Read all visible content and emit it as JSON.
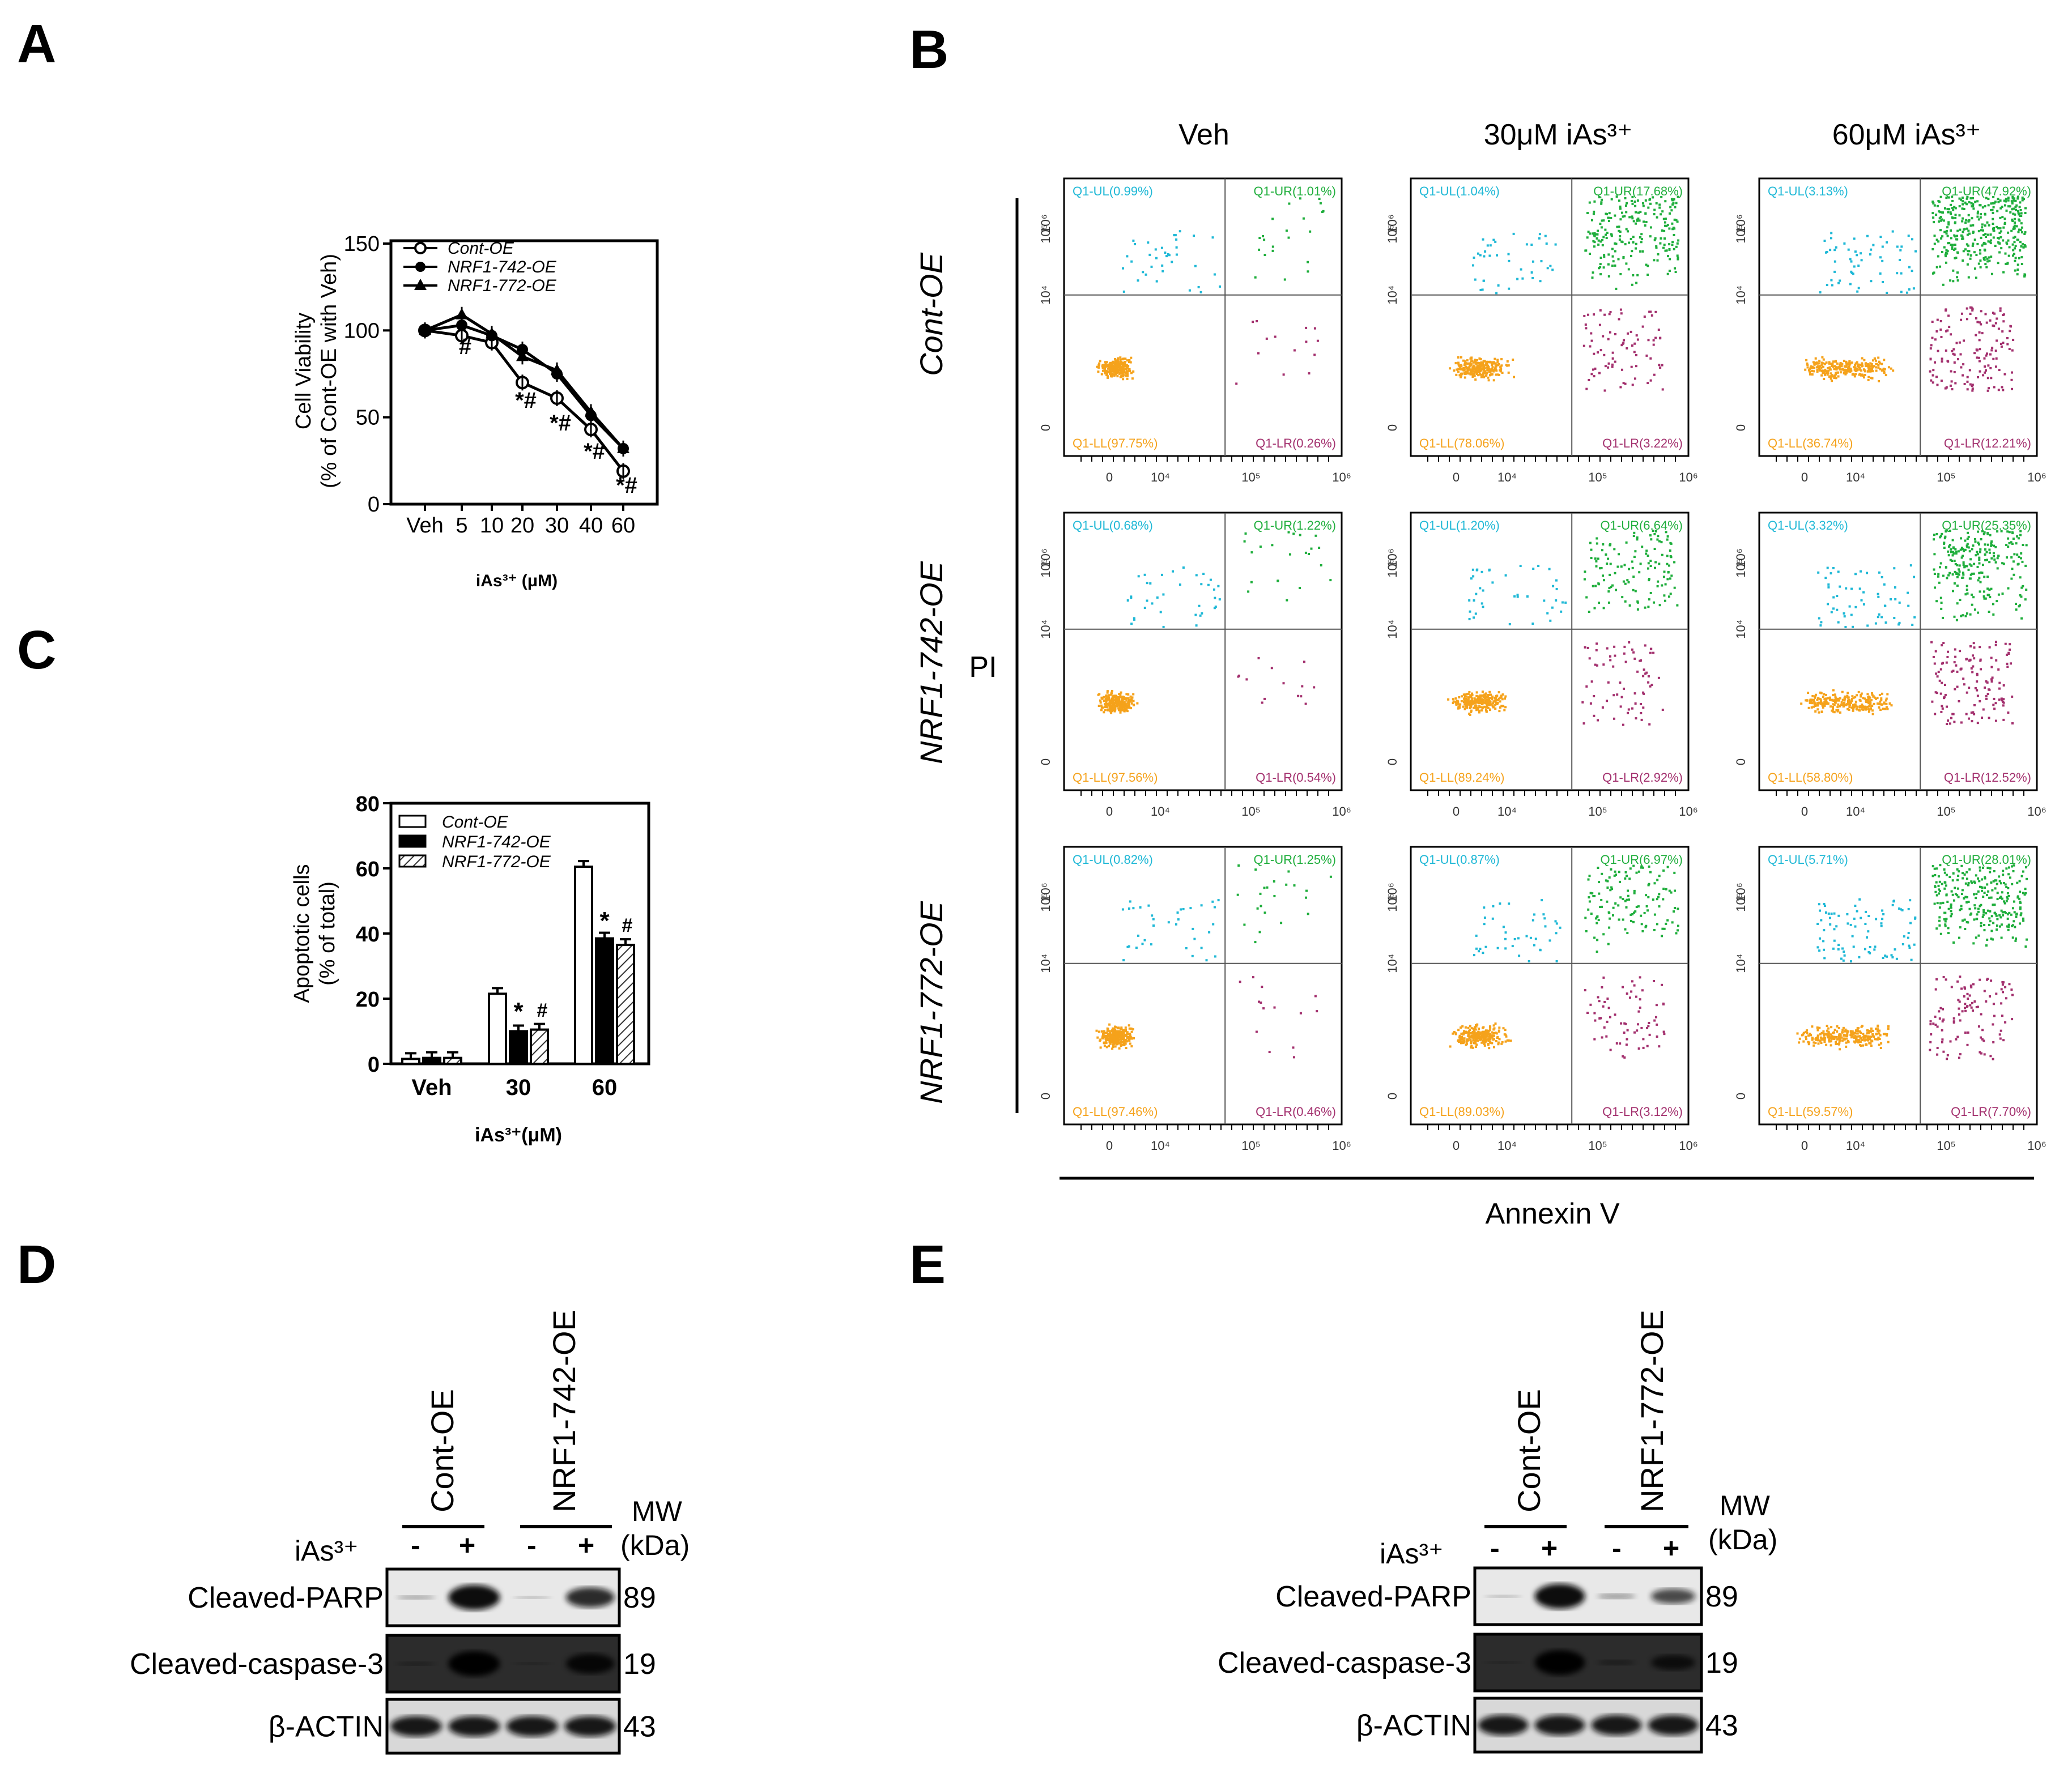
{
  "panels": {
    "A": "A",
    "B": "B",
    "C": "C",
    "D": "D",
    "E": "E"
  },
  "chart_data": [
    {
      "panel": "A",
      "type": "line",
      "title": "",
      "xlabel": "iAs³⁺ (μM)",
      "ylabel_line1": "Cell Viability",
      "ylabel_line2": "(% of Cont-OE with Veh)",
      "categories": [
        "Veh",
        "5",
        "10",
        "20",
        "30",
        "40",
        "60"
      ],
      "yticks": [
        "0",
        "50",
        "100",
        "150"
      ],
      "ylim": [
        0,
        150
      ],
      "series": [
        {
          "name": "Cont-OE",
          "values": [
            100,
            97,
            93,
            70,
            61,
            43,
            19
          ]
        },
        {
          "name": "NRF1-742-OE",
          "values": [
            100,
            103,
            97,
            89,
            75,
            51,
            32
          ]
        },
        {
          "name": "NRF1-772-OE",
          "values": [
            100,
            109,
            98,
            85,
            77,
            53,
            32
          ]
        }
      ],
      "annotations": [
        {
          "category": "5",
          "text": "#"
        },
        {
          "category": "20",
          "text": "*#"
        },
        {
          "category": "30",
          "text": "*#"
        },
        {
          "category": "40",
          "text": "*#"
        },
        {
          "category": "60",
          "text": "*#"
        }
      ],
      "legend_loc": "top-left"
    },
    {
      "panel": "C",
      "type": "bar",
      "title": "",
      "xlabel": "iAs³⁺(μM)",
      "ylabel_line1": "Apoptotic cells",
      "ylabel_line2": "(% of total)",
      "categories": [
        "Veh",
        "30",
        "60"
      ],
      "yticks": [
        "0",
        "20",
        "40",
        "60",
        "80"
      ],
      "ylim": [
        0,
        80
      ],
      "series": [
        {
          "name": "Cont-OE",
          "values": [
            1.5,
            21.5,
            60.5
          ]
        },
        {
          "name": "NRF1-742-OE",
          "values": [
            1.8,
            10,
            38.5
          ]
        },
        {
          "name": "NRF1-772-OE",
          "values": [
            1.8,
            10.5,
            36.5
          ]
        }
      ],
      "annotations": [
        "*",
        "#",
        "*",
        "#"
      ],
      "legend_loc": "top-left"
    }
  ],
  "flow": {
    "col_titles": [
      "Veh",
      "30μM iAs³⁺",
      "60μM iAs³⁺"
    ],
    "row_titles": [
      "Cont-OE",
      "NRF1-742-OE",
      "NRF1-772-OE"
    ],
    "ylabel": "PI",
    "xlabel": "Annexin V",
    "xtick_labels": [
      "0",
      "10⁴",
      "10⁵",
      "10⁶"
    ],
    "ytick_labels": [
      "0",
      "10⁴",
      "10⁵",
      "10⁶"
    ],
    "plots": [
      [
        "Q1-UL(0.99%)",
        "Q1-UR(1.01%)",
        "Q1-LL(97.75%)",
        "Q1-LR(0.26%)"
      ],
      [
        "Q1-UL(1.04%)",
        "Q1-UR(17.68%)",
        "Q1-LL(78.06%)",
        "Q1-LR(3.22%)"
      ],
      [
        "Q1-UL(3.13%)",
        "Q1-UR(47.92%)",
        "Q1-LL(36.74%)",
        "Q1-LR(12.21%)"
      ],
      [
        "Q1-UL(0.68%)",
        "Q1-UR(1.22%)",
        "Q1-LL(97.56%)",
        "Q1-LR(0.54%)"
      ],
      [
        "Q1-UL(1.20%)",
        "Q1-UR(6.64%)",
        "Q1-LL(89.24%)",
        "Q1-LR(2.92%)"
      ],
      [
        "Q1-UL(3.32%)",
        "Q1-UR(25.35%)",
        "Q1-LL(58.80%)",
        "Q1-LR(12.52%)"
      ],
      [
        "Q1-UL(0.82%)",
        "Q1-UR(1.25%)",
        "Q1-LL(97.46%)",
        "Q1-LR(0.46%)"
      ],
      [
        "Q1-UL(0.87%)",
        "Q1-UR(6.97%)",
        "Q1-LL(89.03%)",
        "Q1-LR(3.12%)"
      ],
      [
        "Q1-UL(5.71%)",
        "Q1-UR(28.01%)",
        "Q1-LL(59.57%)",
        "Q1-LR(7.70%)"
      ]
    ],
    "colors": {
      "ul": "#1fb8d6",
      "ur": "#1fae3c",
      "ll": "#f5a21b",
      "lr": "#a3306e"
    }
  },
  "blots": {
    "D": {
      "group1": "Cont-OE",
      "group2": "NRF1-742-OE"
    },
    "E": {
      "group1": "Cont-OE",
      "group2": "NRF1-772-OE"
    },
    "mw_line1": "MW",
    "mw_line2": "(kDa)",
    "treatment": "iAs³⁺",
    "minus": "-",
    "plus": "+",
    "rows": [
      {
        "label": "Cleaved-PARP",
        "mw": "89"
      },
      {
        "label": "Cleaved-caspase-3",
        "mw": "19"
      },
      {
        "label": "β-ACTIN",
        "mw": "43"
      }
    ]
  }
}
